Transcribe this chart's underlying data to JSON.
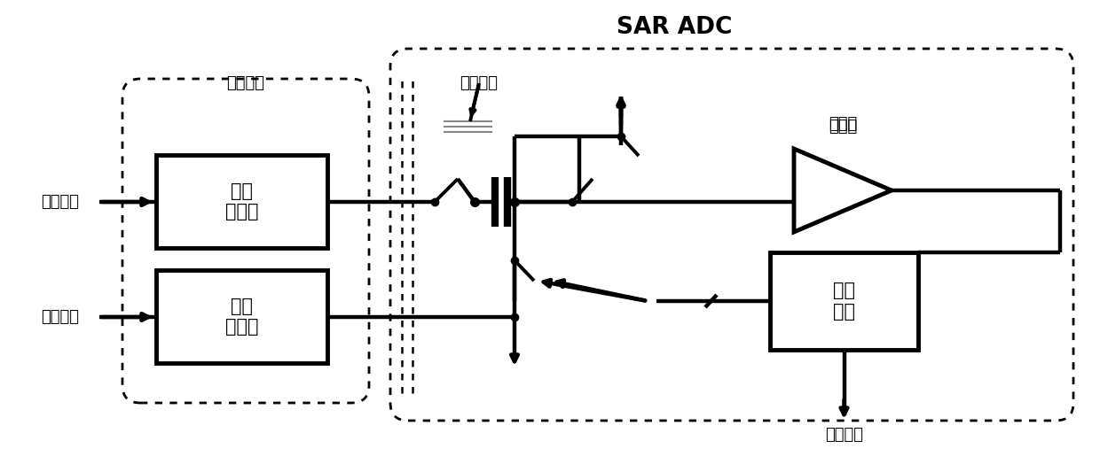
{
  "bg": "#ffffff",
  "black": "#000000",
  "gray": "#888888",
  "title": "SAR ADC",
  "lbl_input_driver": "输入\n驱动器",
  "lbl_ref_buffer": "基准\n缓冲器",
  "lbl_comparator": "比较器",
  "lbl_logic": "逻辑\n电路",
  "lbl_drive_circuit": "驱动电路",
  "lbl_sample_cap": "采样电容",
  "lbl_input_signal": "输入信号",
  "lbl_ref_signal": "基准信号",
  "lbl_output_signal": "输出信号"
}
